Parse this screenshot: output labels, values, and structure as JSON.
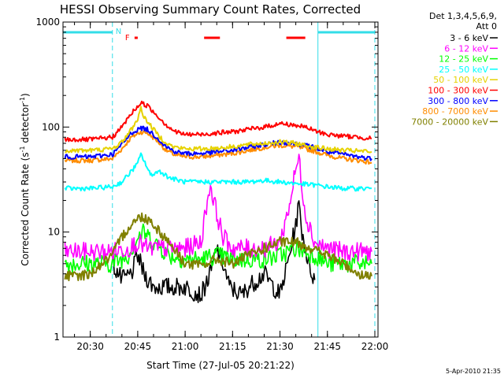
{
  "colors": {
    "background": "#ffffff",
    "axes": "#000000",
    "orbit_marker": "#33dde8",
    "flag": "#ff0000"
  },
  "chart_data": {
    "type": "line",
    "title": "HESSI Observing Summary Count Rates, Corrected",
    "xlabel": "Start Time (27-Jul-05 20:21:22)",
    "ylabel": "Corrected Count Rate (s⁻¹ detector⁻¹)",
    "ylabel_parts": {
      "prefix": "Corrected Count Rate (s",
      "exp1": "-1",
      "middle": " detector",
      "exp2": "-1",
      "suffix": ")"
    },
    "y_scale": "log",
    "ylim": [
      1,
      1000
    ],
    "xlim": [
      "20:21:22",
      "22:01:00"
    ],
    "x_ticks": [
      "20:30",
      "20:45",
      "21:00",
      "21:15",
      "21:30",
      "21:45",
      "22:00"
    ],
    "y_ticks": [
      {
        "value": 1,
        "label": "1"
      },
      {
        "value": 10,
        "label": "10"
      },
      {
        "value": 100,
        "label": "100"
      },
      {
        "value": 1000,
        "label": "1000"
      }
    ],
    "legend_header": [
      "Det 1,3,4,5,6,9,",
      "Att 0"
    ],
    "legend_position": "top-right outside",
    "series": [
      {
        "name": "3 - 6 keV",
        "color": "#000000",
        "points": [
          [
            "20:37",
            5
          ],
          [
            "20:40",
            3.5
          ],
          [
            "20:43",
            4
          ],
          [
            "20:45",
            6
          ],
          [
            "20:47",
            4
          ],
          [
            "20:50",
            3
          ],
          [
            "20:55",
            3
          ],
          [
            "21:00",
            3
          ],
          [
            "21:05",
            2.5
          ],
          [
            "21:08",
            4
          ],
          [
            "21:10",
            7
          ],
          [
            "21:12",
            5
          ],
          [
            "21:14",
            3
          ],
          [
            "21:18",
            2.5
          ],
          [
            "21:20",
            3
          ],
          [
            "21:25",
            4
          ],
          [
            "21:28",
            3
          ],
          [
            "21:30",
            2.5
          ],
          [
            "21:33",
            6
          ],
          [
            "21:35",
            12
          ],
          [
            "21:36",
            18
          ],
          [
            "21:37",
            10
          ],
          [
            "21:39",
            5
          ],
          [
            "21:41",
            3.5
          ]
        ]
      },
      {
        "name": "6 - 12 keV",
        "color": "#ff00ff",
        "points": [
          [
            "20:22",
            6.5
          ],
          [
            "20:30",
            6.5
          ],
          [
            "20:37",
            6.5
          ],
          [
            "20:42",
            7
          ],
          [
            "20:45",
            8
          ],
          [
            "20:48",
            7
          ],
          [
            "20:55",
            7
          ],
          [
            "21:00",
            7
          ],
          [
            "21:05",
            8
          ],
          [
            "21:07",
            20
          ],
          [
            "21:08",
            28
          ],
          [
            "21:10",
            15
          ],
          [
            "21:12",
            9
          ],
          [
            "21:15",
            7
          ],
          [
            "21:20",
            7
          ],
          [
            "21:25",
            7
          ],
          [
            "21:30",
            8
          ],
          [
            "21:33",
            18
          ],
          [
            "21:35",
            40
          ],
          [
            "21:36",
            50
          ],
          [
            "21:38",
            15
          ],
          [
            "21:41",
            8
          ],
          [
            "21:45",
            7
          ],
          [
            "21:50",
            6.5
          ],
          [
            "21:55",
            6.5
          ],
          [
            "21:59",
            6.5
          ]
        ]
      },
      {
        "name": "12 - 25 keV",
        "color": "#00ff00",
        "points": [
          [
            "20:22",
            5
          ],
          [
            "20:30",
            5
          ],
          [
            "20:37",
            5
          ],
          [
            "20:42",
            6
          ],
          [
            "20:45",
            9
          ],
          [
            "20:47",
            10
          ],
          [
            "20:50",
            8
          ],
          [
            "20:55",
            6
          ],
          [
            "21:00",
            5.5
          ],
          [
            "21:05",
            5.5
          ],
          [
            "21:10",
            6
          ],
          [
            "21:15",
            5.5
          ],
          [
            "21:20",
            5.5
          ],
          [
            "21:25",
            5.5
          ],
          [
            "21:30",
            6
          ],
          [
            "21:35",
            7
          ],
          [
            "21:38",
            6.5
          ],
          [
            "21:41",
            6
          ],
          [
            "21:45",
            5
          ],
          [
            "21:50",
            5
          ],
          [
            "21:55",
            5
          ],
          [
            "21:59",
            5
          ]
        ]
      },
      {
        "name": "25 - 50 keV",
        "color": "#00ffff",
        "points": [
          [
            "20:22",
            26
          ],
          [
            "20:30",
            26
          ],
          [
            "20:37",
            27
          ],
          [
            "20:40",
            30
          ],
          [
            "20:43",
            38
          ],
          [
            "20:45",
            45
          ],
          [
            "20:46",
            55
          ],
          [
            "20:47",
            48
          ],
          [
            "20:49",
            35
          ],
          [
            "20:52",
            38
          ],
          [
            "20:55",
            33
          ],
          [
            "20:58",
            31
          ],
          [
            "21:00",
            30
          ],
          [
            "21:05",
            30
          ],
          [
            "21:10",
            30
          ],
          [
            "21:15",
            30
          ],
          [
            "21:20",
            30
          ],
          [
            "21:25",
            31
          ],
          [
            "21:30",
            30
          ],
          [
            "21:35",
            29
          ],
          [
            "21:41",
            28
          ],
          [
            "21:45",
            27
          ],
          [
            "21:50",
            26
          ],
          [
            "21:55",
            26
          ],
          [
            "21:59",
            26
          ]
        ]
      },
      {
        "name": "50 - 100 keV",
        "color": "#e6d200",
        "points": [
          [
            "20:22",
            60
          ],
          [
            "20:30",
            60
          ],
          [
            "20:37",
            62
          ],
          [
            "20:40",
            72
          ],
          [
            "20:43",
            95
          ],
          [
            "20:45",
            120
          ],
          [
            "20:46",
            150
          ],
          [
            "20:47",
            125
          ],
          [
            "20:50",
            95
          ],
          [
            "20:53",
            75
          ],
          [
            "20:56",
            65
          ],
          [
            "21:00",
            62
          ],
          [
            "21:05",
            62
          ],
          [
            "21:10",
            63
          ],
          [
            "21:15",
            65
          ],
          [
            "21:20",
            68
          ],
          [
            "21:25",
            70
          ],
          [
            "21:30",
            72
          ],
          [
            "21:35",
            70
          ],
          [
            "21:40",
            65
          ],
          [
            "21:45",
            62
          ],
          [
            "21:50",
            60
          ],
          [
            "21:55",
            59
          ],
          [
            "21:59",
            58
          ]
        ]
      },
      {
        "name": "100 - 300 keV",
        "color": "#ff0000",
        "points": [
          [
            "20:22",
            76
          ],
          [
            "20:30",
            76
          ],
          [
            "20:37",
            80
          ],
          [
            "20:40",
            100
          ],
          [
            "20:43",
            135
          ],
          [
            "20:46",
            170
          ],
          [
            "20:48",
            160
          ],
          [
            "20:51",
            130
          ],
          [
            "20:54",
            105
          ],
          [
            "20:57",
            90
          ],
          [
            "21:00",
            85
          ],
          [
            "21:05",
            85
          ],
          [
            "21:10",
            88
          ],
          [
            "21:15",
            90
          ],
          [
            "21:20",
            95
          ],
          [
            "21:25",
            100
          ],
          [
            "21:30",
            108
          ],
          [
            "21:34",
            105
          ],
          [
            "21:38",
            100
          ],
          [
            "21:41",
            92
          ],
          [
            "21:45",
            85
          ],
          [
            "21:50",
            82
          ],
          [
            "21:55",
            80
          ],
          [
            "21:59",
            78
          ]
        ]
      },
      {
        "name": "300 - 800 keV",
        "color": "#0000ff",
        "points": [
          [
            "20:22",
            52
          ],
          [
            "20:30",
            52
          ],
          [
            "20:37",
            55
          ],
          [
            "20:40",
            68
          ],
          [
            "20:43",
            88
          ],
          [
            "20:46",
            98
          ],
          [
            "20:48",
            95
          ],
          [
            "20:51",
            80
          ],
          [
            "20:54",
            65
          ],
          [
            "20:57",
            58
          ],
          [
            "21:00",
            56
          ],
          [
            "21:05",
            56
          ],
          [
            "21:10",
            58
          ],
          [
            "21:15",
            60
          ],
          [
            "21:20",
            64
          ],
          [
            "21:25",
            68
          ],
          [
            "21:30",
            72
          ],
          [
            "21:35",
            70
          ],
          [
            "21:40",
            65
          ],
          [
            "21:45",
            58
          ],
          [
            "21:50",
            55
          ],
          [
            "21:55",
            52
          ],
          [
            "21:59",
            50
          ]
        ]
      },
      {
        "name": "800 - 7000 keV",
        "color": "#ff8c00",
        "points": [
          [
            "20:22",
            48
          ],
          [
            "20:30",
            48
          ],
          [
            "20:37",
            50
          ],
          [
            "20:40",
            62
          ],
          [
            "20:43",
            80
          ],
          [
            "20:46",
            90
          ],
          [
            "20:48",
            88
          ],
          [
            "20:51",
            75
          ],
          [
            "20:54",
            60
          ],
          [
            "20:57",
            54
          ],
          [
            "21:00",
            52
          ],
          [
            "21:05",
            52
          ],
          [
            "21:10",
            54
          ],
          [
            "21:15",
            56
          ],
          [
            "21:20",
            60
          ],
          [
            "21:25",
            64
          ],
          [
            "21:30",
            67
          ],
          [
            "21:35",
            65
          ],
          [
            "21:40",
            60
          ],
          [
            "21:45",
            54
          ],
          [
            "21:50",
            50
          ],
          [
            "21:55",
            48
          ],
          [
            "21:59",
            46
          ]
        ]
      },
      {
        "name": "7000 - 20000 keV",
        "color": "#808000",
        "points": [
          [
            "20:22",
            3.8
          ],
          [
            "20:25",
            3.8
          ],
          [
            "20:30",
            4
          ],
          [
            "20:33",
            4.8
          ],
          [
            "20:37",
            6
          ],
          [
            "20:40",
            9
          ],
          [
            "20:43",
            12
          ],
          [
            "20:46",
            14
          ],
          [
            "20:49",
            13
          ],
          [
            "20:52",
            10
          ],
          [
            "20:55",
            8
          ],
          [
            "20:58",
            6
          ],
          [
            "21:00",
            5
          ],
          [
            "21:05",
            4.8
          ],
          [
            "21:10",
            5.5
          ],
          [
            "21:15",
            5
          ],
          [
            "21:20",
            6
          ],
          [
            "21:25",
            7
          ],
          [
            "21:30",
            8
          ],
          [
            "21:35",
            8
          ],
          [
            "21:40",
            7
          ],
          [
            "21:45",
            6
          ],
          [
            "21:50",
            5
          ],
          [
            "21:55",
            4
          ],
          [
            "21:59",
            3.8
          ]
        ]
      }
    ],
    "annotations": [
      {
        "type": "orbit-day",
        "color": "#33dde8",
        "from": "20:21:22",
        "to": "20:37"
      },
      {
        "type": "orbit-day",
        "color": "#33dde8",
        "from": "21:42",
        "to": "22:00"
      },
      {
        "type": "vline-dashed",
        "color": "#33dde8",
        "at": "20:37"
      },
      {
        "type": "vline-solid",
        "color": "#33dde8",
        "at": "21:42"
      },
      {
        "type": "vline-dashed",
        "color": "#33dde8",
        "at": "22:00"
      },
      {
        "type": "text",
        "label": "N",
        "color": "#33dde8",
        "at": "20:38"
      },
      {
        "type": "text",
        "label": "F",
        "color": "#ff0000",
        "at": "20:41"
      },
      {
        "type": "flare-bar",
        "color": "#ff0000",
        "from": "20:44",
        "to": "20:45"
      },
      {
        "type": "flare-bar",
        "color": "#ff0000",
        "from": "21:06",
        "to": "21:11"
      },
      {
        "type": "flare-bar",
        "color": "#ff0000",
        "from": "21:32",
        "to": "21:38"
      }
    ]
  },
  "footer": {
    "timestamp": "5-Apr-2010 21:35"
  }
}
